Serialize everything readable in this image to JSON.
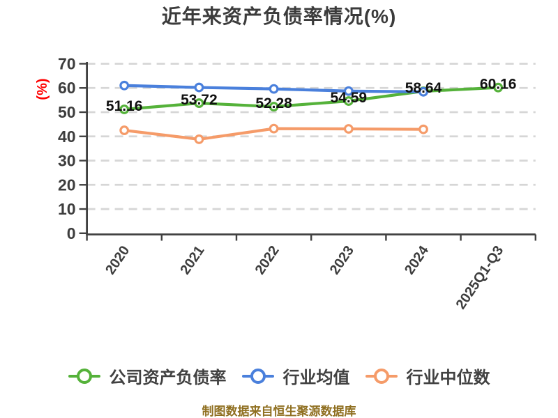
{
  "title": "近年来资产负债率情况(%)",
  "y_axis_unit": "(%)",
  "footer": "制图数据来自恒生聚源数据库",
  "colors": {
    "background": "#ffffff",
    "title": "#3b3b3b",
    "axis": "#404040",
    "tick_label": "#3d3d3d",
    "grid": "#d6d6d6",
    "data_label": "#111111",
    "y_unit": "#ff0000",
    "legend_text": "#414141",
    "footer": "#8f6f20"
  },
  "chart_data": {
    "type": "line",
    "title": "近年来资产负债率情况(%)",
    "categories": [
      "2020",
      "2021",
      "2022",
      "2023",
      "2024",
      "2025Q1-Q3"
    ],
    "xlabel": "",
    "ylabel": "(%)",
    "ylim": [
      0,
      70
    ],
    "yticks": [
      0,
      10,
      20,
      30,
      40,
      50,
      60,
      70
    ],
    "grid": "horizontal-dashed",
    "legend_position": "bottom",
    "series": [
      {
        "name": "公司资产负债率",
        "color": "#55b23a",
        "values": [
          51.16,
          53.72,
          52.28,
          54.59,
          58.64,
          60.16
        ],
        "point_labels": [
          "51.16",
          "53.72",
          "52.28",
          "54.59",
          "58.64",
          "60.16"
        ]
      },
      {
        "name": "行业均值",
        "color": "#4a80dc",
        "values": [
          61.0,
          60.2,
          59.6,
          58.7,
          58.4,
          null
        ]
      },
      {
        "name": "行业中位数",
        "color": "#f59b69",
        "values": [
          42.5,
          38.8,
          43.2,
          43.1,
          42.9,
          null
        ]
      }
    ]
  }
}
